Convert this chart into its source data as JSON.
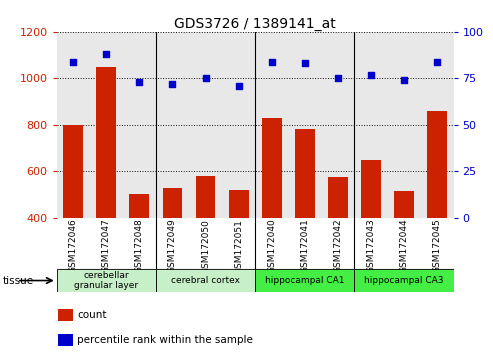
{
  "title": "GDS3726 / 1389141_at",
  "samples": [
    "GSM172046",
    "GSM172047",
    "GSM172048",
    "GSM172049",
    "GSM172050",
    "GSM172051",
    "GSM172040",
    "GSM172041",
    "GSM172042",
    "GSM172043",
    "GSM172044",
    "GSM172045"
  ],
  "count_values": [
    800,
    1050,
    500,
    530,
    580,
    520,
    830,
    780,
    575,
    650,
    515,
    860
  ],
  "percentile_values": [
    84,
    88,
    73,
    72,
    75,
    71,
    84,
    83,
    75,
    77,
    74,
    84
  ],
  "ylim_left": [
    400,
    1200
  ],
  "ylim_right": [
    0,
    100
  ],
  "yticks_left": [
    400,
    600,
    800,
    1000,
    1200
  ],
  "yticks_right": [
    0,
    25,
    50,
    75,
    100
  ],
  "bar_color": "#cc2200",
  "dot_color": "#0000cc",
  "bar_width": 0.6,
  "tissue_groups": [
    {
      "label": "cerebellar\ngranular layer",
      "start": 0,
      "end": 3,
      "color": "#c8f0c8"
    },
    {
      "label": "cerebral cortex",
      "start": 3,
      "end": 6,
      "color": "#c8f0c8"
    },
    {
      "label": "hippocampal CA1",
      "start": 6,
      "end": 9,
      "color": "#44ee44"
    },
    {
      "label": "hippocampal CA3",
      "start": 9,
      "end": 12,
      "color": "#44ee44"
    }
  ],
  "legend_items": [
    {
      "color": "#cc2200",
      "label": "count"
    },
    {
      "color": "#0000cc",
      "label": "percentile rank within the sample"
    }
  ],
  "tissue_label": "tissue",
  "background_color": "#ffffff",
  "plot_bg_color": "#e8e8e8",
  "left_tick_color": "#cc2200",
  "right_tick_color": "#0000cc",
  "grid_color": "#111111"
}
